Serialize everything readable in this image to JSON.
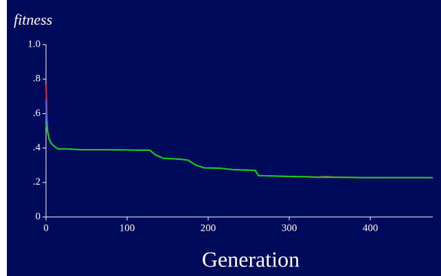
{
  "chart_data": {
    "type": "line",
    "y_label": "fitness",
    "x_label": "Generation",
    "x": [
      0,
      1,
      2,
      4,
      6,
      10,
      15,
      25,
      45,
      80,
      128,
      135,
      145,
      165,
      175,
      185,
      195,
      215,
      230,
      258,
      262,
      300,
      325,
      335,
      345,
      355,
      400,
      477
    ],
    "series": [
      {
        "color": "#ff2020",
        "values": [
          0.77,
          0.6,
          0.5,
          0.45,
          0.43,
          0.41,
          0.395,
          0.395,
          0.39,
          0.39,
          0.387,
          0.36,
          0.34,
          0.335,
          0.33,
          0.3,
          0.285,
          0.283,
          0.275,
          0.27,
          0.24,
          0.235,
          0.233,
          0.232,
          0.235,
          0.232,
          0.228,
          0.228
        ]
      },
      {
        "color": "#3070ff",
        "values": [
          0.68,
          0.55,
          0.5,
          0.45,
          0.43,
          0.41,
          0.395,
          0.395,
          0.39,
          0.39,
          0.387,
          0.36,
          0.34,
          0.335,
          0.33,
          0.3,
          0.285,
          0.283,
          0.275,
          0.27,
          0.24,
          0.235,
          0.232,
          0.23,
          0.232,
          0.23,
          0.228,
          0.228
        ]
      },
      {
        "color": "#10d010",
        "values": [
          0.54,
          0.52,
          0.49,
          0.45,
          0.43,
          0.41,
          0.395,
          0.395,
          0.39,
          0.39,
          0.387,
          0.36,
          0.34,
          0.335,
          0.33,
          0.3,
          0.285,
          0.283,
          0.275,
          0.27,
          0.24,
          0.235,
          0.233,
          0.23,
          0.23,
          0.23,
          0.228,
          0.228
        ]
      }
    ],
    "xlim": [
      0,
      477
    ],
    "xticks": [
      0,
      100,
      200,
      300,
      400
    ],
    "ylim": [
      0,
      1.0
    ],
    "yticks": [
      0,
      {
        "value": 0.2,
        "label": ".2"
      },
      {
        "value": 0.4,
        "label": ".4"
      },
      {
        "value": 0.6,
        "label": ".6"
      },
      {
        "value": 0.8,
        "label": ".8"
      },
      {
        "value": 1.0,
        "label": "1.0"
      }
    ],
    "background": "#000a5a"
  }
}
